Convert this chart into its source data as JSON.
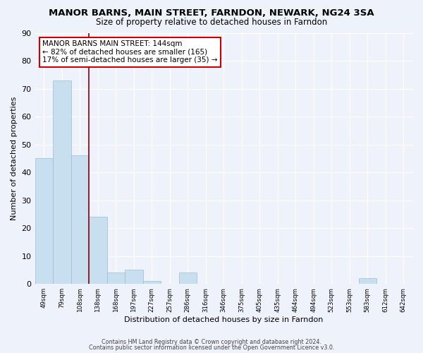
{
  "title": "MANOR BARNS, MAIN STREET, FARNDON, NEWARK, NG24 3SA",
  "subtitle": "Size of property relative to detached houses in Farndon",
  "xlabel": "Distribution of detached houses by size in Farndon",
  "ylabel": "Number of detached properties",
  "bins": [
    "49sqm",
    "79sqm",
    "108sqm",
    "138sqm",
    "168sqm",
    "197sqm",
    "227sqm",
    "257sqm",
    "286sqm",
    "316sqm",
    "346sqm",
    "375sqm",
    "405sqm",
    "435sqm",
    "464sqm",
    "494sqm",
    "523sqm",
    "553sqm",
    "583sqm",
    "612sqm",
    "642sqm"
  ],
  "values": [
    45,
    73,
    46,
    24,
    4,
    5,
    1,
    0,
    4,
    0,
    0,
    0,
    0,
    0,
    0,
    0,
    0,
    0,
    2,
    0,
    0
  ],
  "bar_color": "#c8dff0",
  "bar_edge_color": "#9abcd4",
  "vline_color": "#8b0000",
  "annotation_text": "MANOR BARNS MAIN STREET: 144sqm\n← 82% of detached houses are smaller (165)\n17% of semi-detached houses are larger (35) →",
  "annotation_box_color": "white",
  "annotation_box_edge_color": "#cc0000",
  "ylim": [
    0,
    90
  ],
  "yticks": [
    0,
    10,
    20,
    30,
    40,
    50,
    60,
    70,
    80,
    90
  ],
  "footer_line1": "Contains HM Land Registry data © Crown copyright and database right 2024.",
  "footer_line2": "Contains public sector information licensed under the Open Government Licence v3.0.",
  "bg_color": "#eef2fa",
  "title_fontsize": 9.5,
  "subtitle_fontsize": 8.5
}
